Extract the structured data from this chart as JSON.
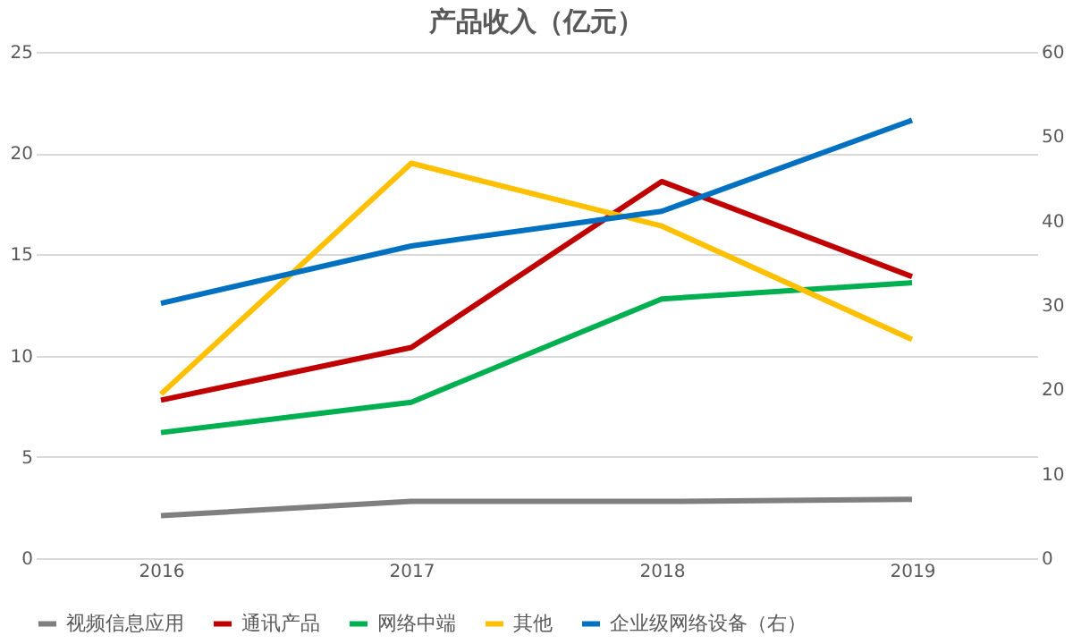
{
  "chart_data": {
    "type": "line",
    "title": "产品收入（亿元）",
    "categories": [
      "2016",
      "2017",
      "2018",
      "2019"
    ],
    "series": [
      {
        "name": "视频信息应用",
        "color": "#7f7f7f",
        "values": [
          2.1,
          2.8,
          2.8,
          2.9
        ]
      },
      {
        "name": "通讯产品",
        "color": "#c00000",
        "values": [
          7.8,
          10.4,
          18.6,
          13.9
        ]
      },
      {
        "name": "网络中端",
        "color": "#00b050",
        "values": [
          6.2,
          7.7,
          12.8,
          13.6
        ]
      },
      {
        "name": "其他",
        "color": "#ffc000",
        "values": [
          8.1,
          19.5,
          16.4,
          10.8
        ]
      },
      {
        "name": "企业级网络设备（右）",
        "color": "#0070c0",
        "values": [
          30.2,
          37.0,
          41.1,
          51.9
        ],
        "axis": "y2"
      }
    ],
    "ylim": [
      0,
      25
    ],
    "yticks": [
      0,
      5,
      10,
      15,
      20,
      25
    ],
    "y2lim": [
      0,
      60
    ],
    "y2ticks": [
      0,
      10,
      20,
      30,
      40,
      50,
      60
    ],
    "grid": "y",
    "legend": "bottom",
    "marker": "none",
    "line_style": "solid"
  }
}
